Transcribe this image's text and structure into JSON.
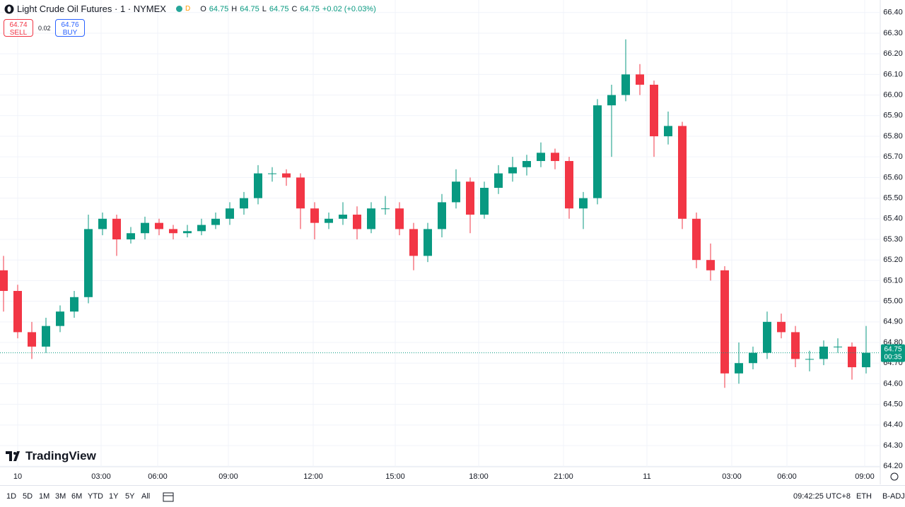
{
  "header": {
    "title": "Light Crude Oil Futures · 1 · NYMEX",
    "badge": "D",
    "o_label": "O",
    "o": "64.75",
    "h_label": "H",
    "h": "64.75",
    "l_label": "L",
    "l": "64.75",
    "c_label": "C",
    "c": "64.75",
    "change": "+0.02 (+0.03%)"
  },
  "trade": {
    "sell_price": "64.74",
    "sell": "SELL",
    "spread": "0.02",
    "buy_price": "64.76",
    "buy": "BUY"
  },
  "logo": "TradingView",
  "toolbar": {
    "ranges": [
      "1D",
      "5D",
      "1M",
      "3M",
      "6M",
      "YTD",
      "1Y",
      "5Y",
      "All"
    ],
    "clock": "09:42:25 UTC+8",
    "session": "ETH",
    "adjust": "B-ADJ"
  },
  "chart_data": {
    "type": "candlestick",
    "up_color": "#089981",
    "down_color": "#f23645",
    "grid": true,
    "x": [
      0,
      1,
      2,
      3,
      4,
      5,
      6,
      7,
      8,
      9,
      10,
      11,
      12,
      13,
      14,
      15,
      16,
      17,
      18,
      19,
      20,
      21,
      22,
      23,
      24,
      25,
      26,
      27,
      28,
      29,
      30,
      31,
      32,
      33,
      34,
      35,
      36,
      37,
      38,
      39,
      40,
      41,
      42,
      43,
      44,
      45,
      46,
      47,
      48,
      49,
      50,
      51,
      52,
      53,
      54,
      55,
      56,
      57,
      58,
      59,
      60,
      61
    ],
    "open": [
      65.15,
      65.05,
      64.85,
      64.78,
      64.88,
      64.95,
      65.02,
      65.35,
      65.4,
      65.3,
      65.33,
      65.38,
      65.35,
      65.33,
      65.34,
      65.37,
      65.4,
      65.45,
      65.5,
      65.62,
      65.62,
      65.6,
      65.45,
      65.38,
      65.4,
      65.42,
      65.35,
      65.45,
      65.45,
      65.35,
      65.22,
      65.35,
      65.48,
      65.58,
      65.42,
      65.55,
      65.62,
      65.65,
      65.68,
      65.72,
      65.68,
      65.45,
      65.5,
      65.95,
      66.0,
      66.1,
      66.05,
      65.8,
      65.85,
      65.4,
      65.2,
      65.15,
      64.65,
      64.7,
      64.75,
      64.9,
      64.85,
      64.72,
      64.72,
      64.78,
      64.78,
      64.68
    ],
    "high": [
      65.22,
      65.08,
      64.9,
      64.92,
      64.98,
      65.05,
      65.42,
      65.43,
      65.42,
      65.36,
      65.41,
      65.4,
      65.37,
      65.37,
      65.4,
      65.43,
      65.48,
      65.53,
      65.66,
      65.65,
      65.64,
      65.62,
      65.48,
      65.43,
      65.48,
      65.46,
      65.48,
      65.51,
      65.48,
      65.38,
      65.38,
      65.52,
      65.64,
      65.6,
      65.58,
      65.66,
      65.7,
      65.71,
      65.77,
      65.74,
      65.7,
      65.53,
      65.98,
      66.05,
      66.27,
      66.15,
      66.07,
      65.92,
      65.87,
      65.43,
      65.28,
      65.17,
      64.8,
      64.78,
      64.95,
      64.94,
      64.88,
      64.76,
      64.81,
      64.82,
      64.8,
      64.88
    ],
    "low": [
      64.95,
      64.82,
      64.72,
      64.75,
      64.85,
      64.92,
      64.99,
      65.32,
      65.22,
      65.28,
      65.3,
      65.32,
      65.3,
      65.31,
      65.32,
      65.35,
      65.37,
      65.42,
      65.47,
      65.58,
      65.56,
      65.35,
      65.3,
      65.35,
      65.37,
      65.3,
      65.33,
      65.42,
      65.32,
      65.15,
      65.19,
      65.31,
      65.45,
      65.33,
      65.4,
      65.52,
      65.58,
      65.61,
      65.65,
      65.64,
      65.4,
      65.35,
      65.47,
      65.7,
      65.97,
      66.0,
      65.7,
      65.76,
      65.35,
      65.16,
      65.1,
      64.58,
      64.6,
      64.67,
      64.72,
      64.82,
      64.68,
      64.66,
      64.69,
      64.75,
      64.62,
      64.65
    ],
    "close": [
      65.05,
      64.85,
      64.78,
      64.88,
      64.95,
      65.02,
      65.35,
      65.4,
      65.3,
      65.33,
      65.38,
      65.35,
      65.33,
      65.34,
      65.37,
      65.4,
      65.45,
      65.5,
      65.62,
      65.62,
      65.6,
      65.45,
      65.38,
      65.4,
      65.42,
      65.35,
      65.45,
      65.45,
      65.35,
      65.22,
      65.35,
      65.48,
      65.58,
      65.42,
      65.55,
      65.62,
      65.65,
      65.68,
      65.72,
      65.68,
      65.45,
      65.5,
      65.95,
      66.0,
      66.1,
      66.05,
      65.8,
      65.85,
      65.4,
      65.2,
      65.15,
      64.65,
      64.7,
      64.75,
      64.9,
      64.85,
      64.72,
      64.72,
      64.78,
      64.78,
      64.68,
      64.75
    ],
    "xlim": [
      -0.25,
      62
    ],
    "xticks": [
      {
        "value": 1,
        "label": "10"
      },
      {
        "value": 6.9,
        "label": "03:00"
      },
      {
        "value": 10.9,
        "label": "06:00"
      },
      {
        "value": 15.9,
        "label": "09:00"
      },
      {
        "value": 21.9,
        "label": "12:00"
      },
      {
        "value": 27.7,
        "label": "15:00"
      },
      {
        "value": 33.6,
        "label": "18:00"
      },
      {
        "value": 39.6,
        "label": "21:00"
      },
      {
        "value": 45.5,
        "label": "11"
      },
      {
        "value": 51.5,
        "label": "03:00"
      },
      {
        "value": 55.4,
        "label": "06:00"
      },
      {
        "value": 60.9,
        "label": "09:00"
      }
    ],
    "ylim": [
      64.17,
      66.43
    ],
    "yticks": [
      {
        "value": 64.2,
        "label": "64.20"
      },
      {
        "value": 64.3,
        "label": "64.30"
      },
      {
        "value": 64.4,
        "label": "64.40"
      },
      {
        "value": 64.5,
        "label": "64.50"
      },
      {
        "value": 64.6,
        "label": "64.60"
      },
      {
        "value": 64.7,
        "label": "64.70"
      },
      {
        "value": 64.8,
        "label": "64.80"
      },
      {
        "value": 64.9,
        "label": "64.90"
      },
      {
        "value": 65.0,
        "label": "65.00"
      },
      {
        "value": 65.1,
        "label": "65.10"
      },
      {
        "value": 65.2,
        "label": "65.20"
      },
      {
        "value": 65.3,
        "label": "65.30"
      },
      {
        "value": 65.4,
        "label": "65.40"
      },
      {
        "value": 65.5,
        "label": "65.50"
      },
      {
        "value": 65.6,
        "label": "65.60"
      },
      {
        "value": 65.7,
        "label": "65.70"
      },
      {
        "value": 65.8,
        "label": "65.80"
      },
      {
        "value": 65.9,
        "label": "65.90"
      },
      {
        "value": 66.0,
        "label": "66.00"
      },
      {
        "value": 66.1,
        "label": "66.10"
      },
      {
        "value": 66.2,
        "label": "66.20"
      },
      {
        "value": 66.3,
        "label": "66.30"
      },
      {
        "value": 66.4,
        "label": "66.40"
      }
    ],
    "last_price": {
      "value": 64.75,
      "label": "64.75"
    },
    "countdown": "00:35"
  }
}
